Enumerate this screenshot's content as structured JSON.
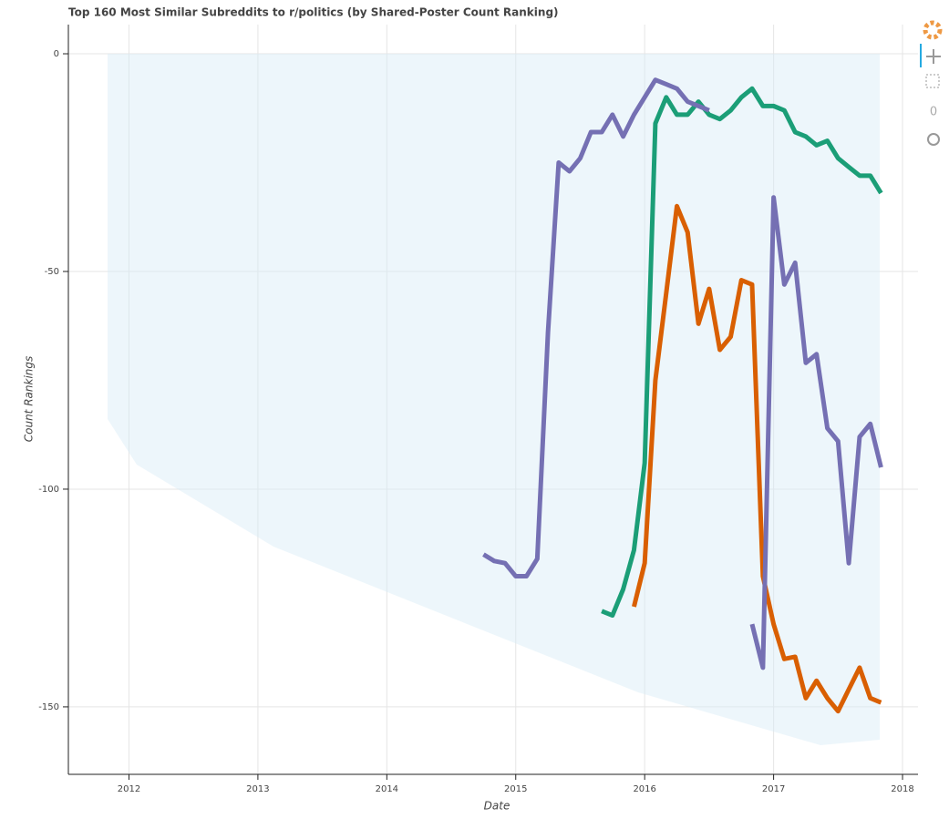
{
  "chart_data": {
    "type": "line",
    "title": "Top 160 Most Similar Subreddits to r/politics (by Shared-Poster Count Ranking)",
    "xlabel": "Date",
    "ylabel": "Count Rankings",
    "xlim": [
      2011.53,
      2018.12
    ],
    "ylim": [
      -165.5,
      6.7
    ],
    "xticks": [
      2012,
      2013,
      2014,
      2015,
      2016,
      2017,
      2018
    ],
    "yticks": [
      0,
      -50,
      -100,
      -150
    ],
    "grid": true,
    "series": [
      {
        "color": "#d95f02",
        "x": [
          2015.917,
          2016,
          2016.083,
          2016.167,
          2016.25,
          2016.333,
          2016.417,
          2016.5,
          2016.583,
          2016.667,
          2016.75,
          2016.833,
          2016.917,
          2017,
          2017.083,
          2017.167,
          2017.25,
          2017.333,
          2017.417,
          2017.5,
          2017.583,
          2017.667,
          2017.75,
          2017.833
        ],
        "values": [
          -127,
          -117,
          -75,
          -55,
          -35,
          -41,
          -62,
          -54,
          -68,
          -65,
          -52,
          -53,
          -120,
          -131,
          -139,
          -138.5,
          -148,
          -144,
          -148,
          -151,
          -146,
          -141,
          -148,
          -149
        ]
      },
      {
        "color": "#1b9e77",
        "x": [
          2015.667,
          2015.75,
          2015.833,
          2015.917,
          2016,
          2016.083,
          2016.167,
          2016.25,
          2016.333,
          2016.417,
          2016.5,
          2016.583,
          2016.667,
          2016.75,
          2016.833,
          2016.917,
          2017,
          2017.083,
          2017.167,
          2017.25,
          2017.333,
          2017.417,
          2017.5,
          2017.583,
          2017.667,
          2017.75,
          2017.833
        ],
        "values": [
          -128,
          -129,
          -123,
          -114,
          -94,
          -16,
          -10,
          -14,
          -14,
          -11,
          -14,
          -15,
          -13,
          -10,
          -8,
          -12,
          -12,
          -13,
          -18,
          -19,
          -21,
          -20,
          -24,
          -26,
          -28,
          -28,
          -32
        ]
      },
      {
        "color": "#7570b3",
        "x": [
          2014.75,
          2014.833,
          2014.917,
          2015,
          2015.083,
          2015.167,
          2015.25,
          2015.333,
          2015.417,
          2015.5,
          2015.583,
          2015.667,
          2015.75,
          2015.833,
          2015.917,
          2016,
          2016.083,
          2016.167,
          2016.25,
          2016.333,
          2016.417,
          2016.5
        ],
        "values": [
          -115,
          -116.5,
          -117,
          -120,
          -120,
          -116,
          -64,
          -25,
          -27,
          -24,
          -18,
          -18,
          -14,
          -19,
          -14,
          -10,
          -6,
          -7,
          -8,
          -11,
          -12,
          -13
        ]
      },
      {
        "color": "#7570b3",
        "x": [
          2016.833,
          2016.917,
          2017,
          2017.083,
          2017.167,
          2017.25,
          2017.333,
          2017.417,
          2017.5,
          2017.583,
          2017.667,
          2017.75,
          2017.833
        ],
        "values": [
          -131,
          -141,
          -33,
          -53,
          -48,
          -71,
          -69,
          -86,
          -89,
          -117,
          -88,
          -85,
          -95
        ]
      }
    ]
  }
}
